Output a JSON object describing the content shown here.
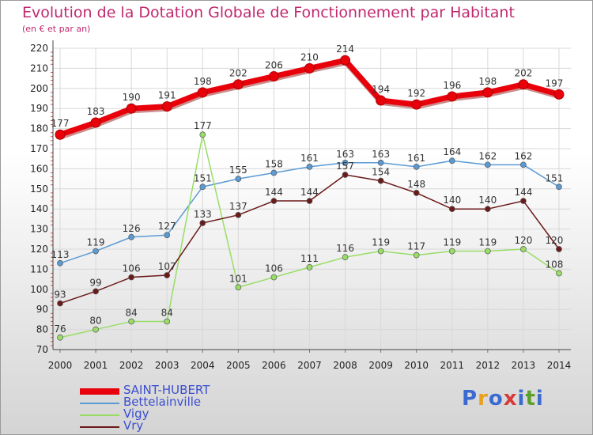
{
  "header": {
    "title": "Evolution de la Dotation Globale de Fonctionnement par Habitant",
    "subtitle": "(en € et par an)"
  },
  "logo": {
    "text": "Proxiti",
    "colors": [
      "#3b6bd1",
      "#e8a020",
      "#3b6bd1",
      "#d83a3a",
      "#3b6bd1",
      "#5aa02a",
      "#3b6bd1"
    ]
  },
  "chart_data": {
    "type": "line",
    "x": [
      "2000",
      "2001",
      "2002",
      "2003",
      "2004",
      "2005",
      "2006",
      "2007",
      "2008",
      "2009",
      "2010",
      "2011",
      "2012",
      "2013",
      "2014"
    ],
    "ylim": [
      70,
      220
    ],
    "yticks": [
      "70",
      "80",
      "90",
      "100",
      "110",
      "120",
      "130",
      "140",
      "150",
      "160",
      "170",
      "180",
      "190",
      "200",
      "210",
      "220"
    ],
    "grid": true,
    "legend_position": "bottom-left",
    "series": [
      {
        "name": "SAINT-HUBERT",
        "color": "#e8000b",
        "bold": true,
        "values": [
          177,
          183,
          190,
          191,
          198,
          202,
          206,
          210,
          214,
          194,
          192,
          196,
          198,
          202,
          197
        ]
      },
      {
        "name": "Bettelainville",
        "color": "#5b9bd5",
        "bold": false,
        "values": [
          113,
          119,
          126,
          127,
          151,
          155,
          158,
          161,
          163,
          163,
          161,
          164,
          162,
          162,
          151
        ]
      },
      {
        "name": "Vigy",
        "color": "#99dd66",
        "bold": false,
        "values": [
          76,
          80,
          84,
          84,
          177,
          101,
          106,
          111,
          116,
          119,
          117,
          119,
          119,
          120,
          108
        ]
      },
      {
        "name": "Vry",
        "color": "#6b1a1a",
        "bold": false,
        "values": [
          93,
          99,
          106,
          107,
          133,
          137,
          144,
          144,
          157,
          154,
          148,
          140,
          140,
          144,
          120
        ]
      }
    ]
  }
}
